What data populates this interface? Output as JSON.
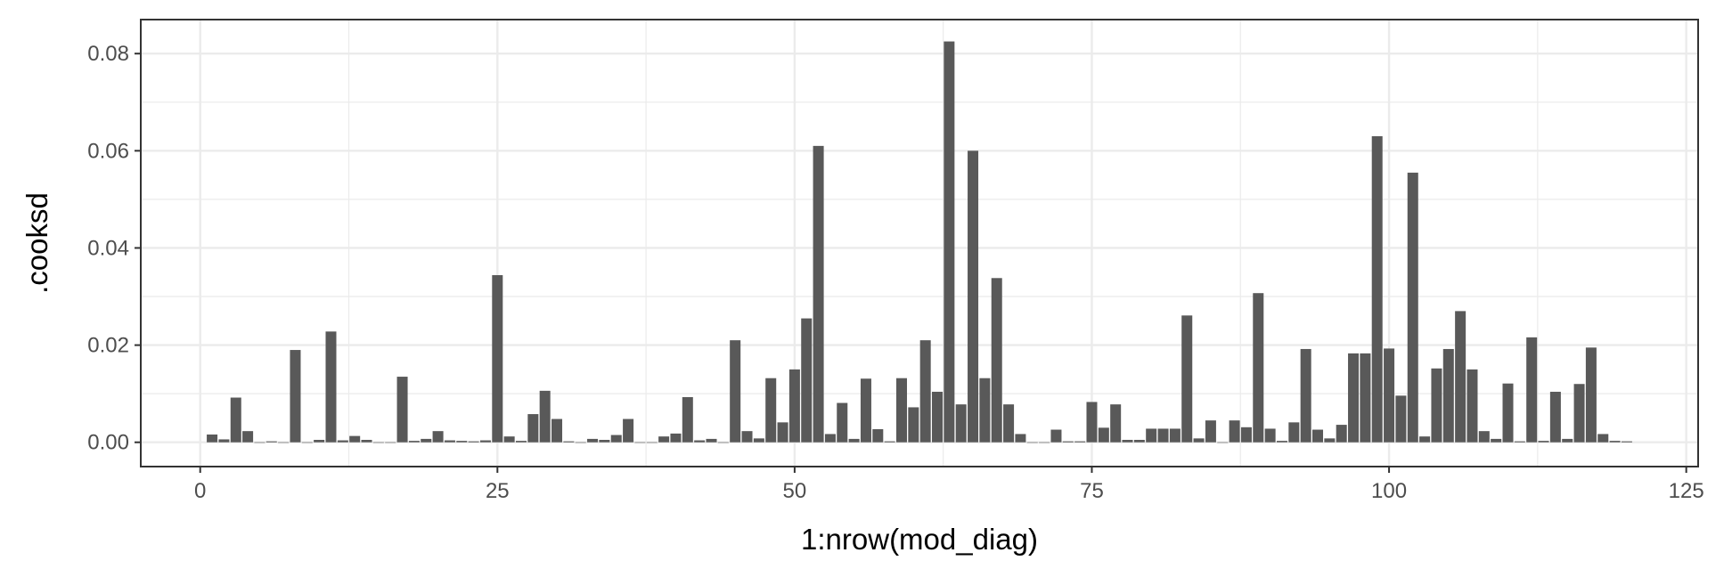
{
  "chart_data": {
    "type": "bar",
    "title": "",
    "xlabel": "1:nrow(mod_diag)",
    "ylabel": ".cooksd",
    "xlim": [
      -5,
      126
    ],
    "ylim": [
      -0.005,
      0.087
    ],
    "x_ticks": [
      0,
      25,
      50,
      75,
      100,
      125
    ],
    "x_tick_labels": [
      "0",
      "25",
      "50",
      "75",
      "100",
      "125"
    ],
    "y_ticks": [
      0,
      0.02,
      0.04,
      0.06,
      0.08
    ],
    "y_tick_labels": [
      "0.00",
      "0.02",
      "0.04",
      "0.06",
      "0.08"
    ],
    "grid": true,
    "bar_color": "#595959",
    "x": [
      1,
      2,
      3,
      4,
      5,
      6,
      7,
      8,
      9,
      10,
      11,
      12,
      13,
      14,
      15,
      16,
      17,
      18,
      19,
      20,
      21,
      22,
      23,
      24,
      25,
      26,
      27,
      28,
      29,
      30,
      31,
      32,
      33,
      34,
      35,
      36,
      37,
      38,
      39,
      40,
      41,
      42,
      43,
      44,
      45,
      46,
      47,
      48,
      49,
      50,
      51,
      52,
      53,
      54,
      55,
      56,
      57,
      58,
      59,
      60,
      61,
      62,
      63,
      64,
      65,
      66,
      67,
      68,
      69,
      70,
      71,
      72,
      73,
      74,
      75,
      76,
      77,
      78,
      79,
      80,
      81,
      82,
      83,
      84,
      85,
      86,
      87,
      88,
      89,
      90,
      91,
      92,
      93,
      94,
      95,
      96,
      97,
      98,
      99,
      100,
      101,
      102,
      103,
      104,
      105,
      106,
      107,
      108,
      109,
      110,
      111,
      112,
      113,
      114,
      115,
      116,
      117,
      118,
      119,
      120
    ],
    "values": [
      0.0016,
      0.0006,
      0.0092,
      0.0023,
      0.0,
      0.0002,
      0.0,
      0.019,
      0.0,
      0.0005,
      0.0228,
      0.0004,
      0.0013,
      0.0005,
      0.0,
      0.0,
      0.0135,
      0.0003,
      0.0007,
      0.0023,
      0.0004,
      0.0003,
      0.0002,
      0.0004,
      0.0344,
      0.0012,
      0.0003,
      0.0058,
      0.0106,
      0.0048,
      0.0002,
      0.0,
      0.0007,
      0.0005,
      0.0015,
      0.0048,
      0.0,
      0.0,
      0.0012,
      0.0018,
      0.0093,
      0.0004,
      0.0007,
      0.0,
      0.021,
      0.0023,
      0.0008,
      0.0132,
      0.0041,
      0.015,
      0.0255,
      0.061,
      0.0017,
      0.0081,
      0.0007,
      0.0131,
      0.0027,
      0.0002,
      0.0132,
      0.0072,
      0.021,
      0.0104,
      0.0825,
      0.0078,
      0.06,
      0.0132,
      0.0338,
      0.0078,
      0.0017,
      0.0,
      0.0,
      0.0026,
      0.0002,
      0.0002,
      0.0083,
      0.003,
      0.0078,
      0.0005,
      0.0005,
      0.0028,
      0.0028,
      0.0028,
      0.0261,
      0.0008,
      0.0045,
      0.0,
      0.0045,
      0.0031,
      0.0307,
      0.0028,
      0.0003,
      0.0041,
      0.0192,
      0.0026,
      0.0008,
      0.0036,
      0.0183,
      0.0183,
      0.063,
      0.0193,
      0.0096,
      0.0555,
      0.0012,
      0.0152,
      0.0192,
      0.027,
      0.015,
      0.0023,
      0.0007,
      0.0121,
      0.0002,
      0.0216,
      0.0003,
      0.0104,
      0.0007,
      0.012,
      0.0195,
      0.0017,
      0.0003,
      0.0002
    ]
  }
}
